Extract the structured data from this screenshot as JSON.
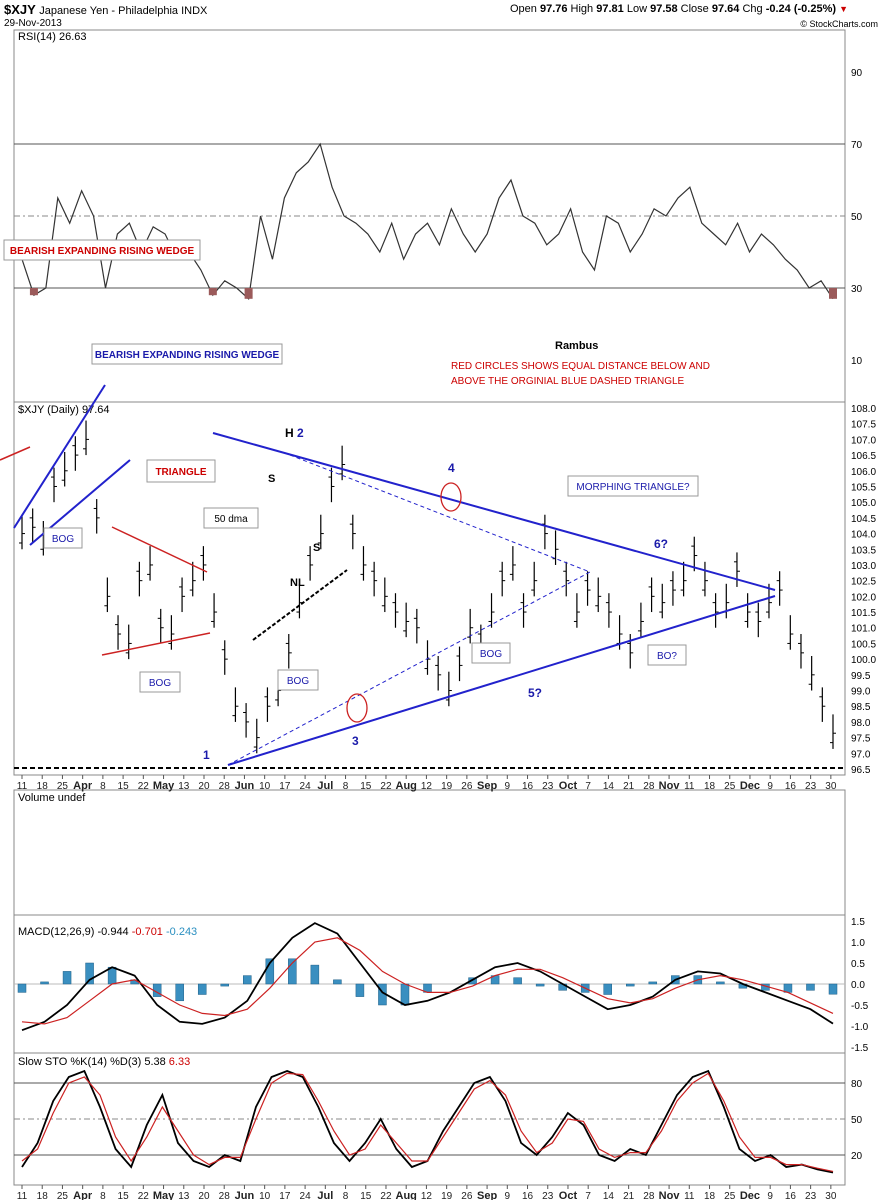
{
  "header": {
    "symbol": "$XJY",
    "name": "Japanese Yen - Philadelphia INDX",
    "date": "29-Nov-2013",
    "open_label": "Open",
    "open": "97.76",
    "high_label": "High",
    "high": "97.81",
    "low_label": "Low",
    "low": "97.58",
    "close_label": "Close",
    "close": "97.64",
    "chg_label": "Chg",
    "chg": "-0.24 (-0.25%)",
    "credit": "© StockCharts.com",
    "down_color": "#cc0000"
  },
  "x_axis": {
    "labels": [
      "11",
      "18",
      "25",
      "Apr",
      "8",
      "15",
      "22",
      "May",
      "13",
      "20",
      "28",
      "Jun",
      "10",
      "17",
      "24",
      "Jul",
      "8",
      "15",
      "22",
      "Aug",
      "12",
      "19",
      "26",
      "Sep",
      "9",
      "16",
      "23",
      "Oct",
      "7",
      "14",
      "21",
      "28",
      "Nov",
      "11",
      "18",
      "25",
      "Dec",
      "9",
      "16",
      "23",
      "30"
    ],
    "months": [
      "Apr",
      "May",
      "Jun",
      "Jul",
      "Aug",
      "Sep",
      "Oct",
      "Nov",
      "Dec"
    ]
  },
  "chart_data": [
    {
      "type": "line",
      "title": "RSI(14) 26.63",
      "ylim": [
        0,
        100
      ],
      "reference_lines": [
        30,
        50,
        70
      ],
      "y_ticks": [
        "90",
        "70",
        "50",
        "30",
        "10"
      ],
      "series": [
        {
          "name": "RSI(14)",
          "values": [
            38,
            28,
            30,
            55,
            48,
            57,
            50,
            30,
            45,
            48,
            40,
            47,
            45,
            38,
            40,
            35,
            28,
            32,
            30,
            27,
            50,
            38,
            55,
            62,
            65,
            70,
            58,
            50,
            48,
            45,
            40,
            48,
            38,
            45,
            48,
            42,
            52,
            45,
            40,
            45,
            55,
            60,
            50,
            48,
            42,
            45,
            52,
            40,
            35,
            50,
            48,
            40,
            45,
            52,
            50,
            55,
            58,
            48,
            45,
            42,
            48,
            40,
            45,
            42,
            38,
            35,
            30,
            32,
            27
          ]
        }
      ]
    },
    {
      "type": "candlestick",
      "title": "$XJY (Daily) 97.64",
      "ylim": [
        96.5,
        108.0
      ],
      "y_ticks": [
        "108.0",
        "107.5",
        "107.0",
        "106.5",
        "106.0",
        "105.5",
        "105.0",
        "104.5",
        "104.0",
        "103.5",
        "103.0",
        "102.5",
        "102.0",
        "101.5",
        "101.0",
        "100.5",
        "100.0",
        "99.5",
        "99.0",
        "98.5",
        "98.0",
        "97.5",
        "97.0",
        "96.5"
      ],
      "close": [
        104,
        104.2,
        103.8,
        105.5,
        106,
        106.5,
        107,
        104.5,
        102,
        100.8,
        100.5,
        102.5,
        103,
        101,
        100.8,
        102,
        102.5,
        103,
        101.5,
        100,
        98.5,
        98,
        97.5,
        98.5,
        99,
        100.2,
        101.8,
        103,
        104,
        105.5,
        106.2,
        104,
        103,
        102.5,
        102,
        101.5,
        101.2,
        101,
        100,
        99.5,
        99,
        99.8,
        101,
        100.5,
        101.5,
        102.5,
        103,
        101.5,
        102.5,
        104,
        103.5,
        102.5,
        101.5,
        102.2,
        102,
        101.5,
        100.8,
        100.2,
        101.2,
        102,
        101.8,
        102.2,
        102.5,
        103.3,
        102.5,
        101.5,
        101.8,
        102.8,
        101.5,
        101.2,
        101.8,
        102.2,
        100.8,
        100.2,
        99.5,
        98.5,
        97.64
      ],
      "annotations": [
        "BEARISH EXPANDING RISING WEDGE",
        "BEARISH EXPANDING RISING WEDGE",
        "TRIANGLE",
        "50 dma",
        "MORPHING TRIANGLE?",
        "BOG",
        "BOG",
        "BOG",
        "BOG",
        "BO?",
        "H",
        "2",
        "S",
        "S",
        "NL",
        "1",
        "3",
        "4",
        "5?",
        "6?",
        "Rambus",
        "RED CIRCLES SHOWS EQUAL DISTANCE BELOW AND",
        "ABOVE THE ORGINIAL BLUE DASHED TRIANGLE"
      ]
    },
    {
      "type": "bar",
      "title": "Volume undef",
      "values": []
    },
    {
      "type": "line",
      "title": "MACD(12,26,9)",
      "title_values": [
        "-0.944",
        "-0.701",
        "-0.243"
      ],
      "ylim": [
        -1.5,
        1.5
      ],
      "y_ticks": [
        "1.5",
        "1.0",
        "0.5",
        "0.0",
        "-0.5",
        "-1.0",
        "-1.5"
      ],
      "series": [
        {
          "name": "MACD",
          "values": [
            -1.1,
            -0.9,
            -0.5,
            0.1,
            0.4,
            0.2,
            -0.5,
            -0.9,
            -0.95,
            -0.8,
            -0.4,
            0.5,
            1.1,
            1.45,
            1.2,
            0.5,
            -0.2,
            -0.5,
            -0.4,
            -0.2,
            0.1,
            0.4,
            0.5,
            0.3,
            0.0,
            -0.3,
            -0.6,
            -0.5,
            -0.3,
            0.1,
            0.3,
            0.25,
            0.0,
            -0.2,
            -0.4,
            -0.6,
            -0.944
          ]
        },
        {
          "name": "Signal",
          "values": [
            -0.9,
            -0.95,
            -0.8,
            -0.4,
            0.0,
            0.1,
            -0.2,
            -0.5,
            -0.7,
            -0.75,
            -0.6,
            -0.1,
            0.5,
            1.0,
            1.1,
            0.8,
            0.3,
            0.0,
            -0.2,
            -0.2,
            -0.05,
            0.2,
            0.35,
            0.35,
            0.15,
            -0.1,
            -0.35,
            -0.45,
            -0.35,
            -0.1,
            0.1,
            0.2,
            0.1,
            -0.05,
            -0.2,
            -0.45,
            -0.701
          ]
        },
        {
          "name": "Histogram",
          "values": [
            -0.2,
            0.05,
            0.3,
            0.5,
            0.4,
            0.1,
            -0.3,
            -0.4,
            -0.25,
            -0.05,
            0.2,
            0.6,
            0.6,
            0.45,
            0.1,
            -0.3,
            -0.5,
            -0.5,
            -0.2,
            0.0,
            0.15,
            0.2,
            0.15,
            -0.05,
            -0.15,
            -0.2,
            -0.25,
            -0.05,
            0.05,
            0.2,
            0.2,
            0.05,
            -0.1,
            -0.15,
            -0.2,
            -0.15,
            -0.243
          ]
        }
      ]
    },
    {
      "type": "line",
      "title": "Slow STO %K(14) %D(3)",
      "title_values": [
        "5.38",
        "6.33"
      ],
      "ylim": [
        0,
        100
      ],
      "reference_lines": [
        20,
        50,
        80
      ],
      "y_ticks": [
        "80",
        "50",
        "20"
      ],
      "series": [
        {
          "name": "%K(14)",
          "values": [
            10,
            30,
            65,
            85,
            90,
            60,
            25,
            10,
            45,
            70,
            30,
            15,
            10,
            20,
            15,
            60,
            85,
            90,
            85,
            60,
            30,
            15,
            30,
            50,
            25,
            10,
            15,
            40,
            60,
            80,
            85,
            65,
            30,
            20,
            35,
            55,
            45,
            20,
            15,
            25,
            20,
            45,
            70,
            85,
            90,
            60,
            25,
            15,
            20,
            10,
            12,
            8,
            5.38
          ]
        },
        {
          "name": "%D(3)",
          "values": [
            15,
            25,
            55,
            80,
            85,
            70,
            35,
            15,
            35,
            60,
            40,
            20,
            12,
            18,
            18,
            50,
            80,
            88,
            87,
            65,
            40,
            20,
            25,
            45,
            30,
            15,
            15,
            35,
            55,
            75,
            82,
            70,
            40,
            22,
            30,
            50,
            48,
            25,
            18,
            22,
            22,
            40,
            65,
            80,
            88,
            65,
            35,
            18,
            18,
            12,
            12,
            9,
            6.33
          ]
        }
      ]
    }
  ]
}
